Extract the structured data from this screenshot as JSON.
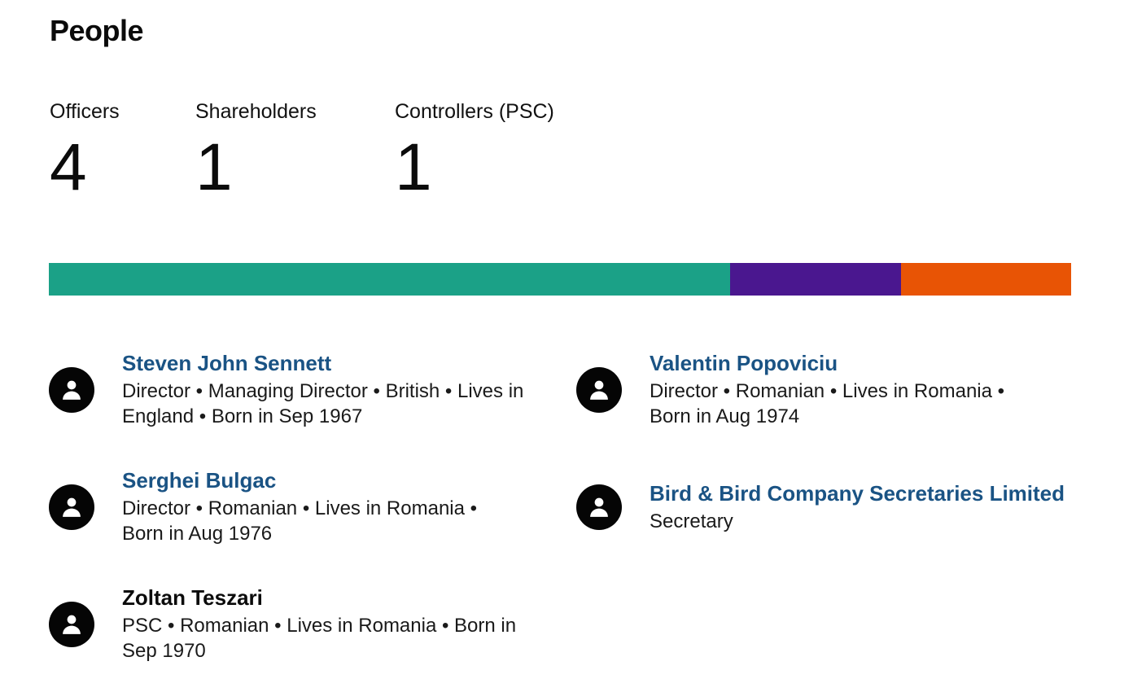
{
  "section": {
    "title": "People"
  },
  "stats": [
    {
      "label": "Officers",
      "value": "4"
    },
    {
      "label": "Shareholders",
      "value": "1"
    },
    {
      "label": "Controllers (PSC)",
      "value": "1"
    }
  ],
  "distribution_bar": {
    "segments": [
      {
        "category": "Officers",
        "count": 4,
        "color": "#1ba187"
      },
      {
        "category": "Shareholders",
        "count": 1,
        "color": "#4a178f"
      },
      {
        "category": "Controllers (PSC)",
        "count": 1,
        "color": "#e85405"
      }
    ]
  },
  "people": [
    {
      "name": "Steven John Sennett",
      "details": "Director • Managing Director • British • Lives in England • Born in Sep 1967",
      "is_link": true,
      "icon": "person-icon"
    },
    {
      "name": "Valentin Popoviciu",
      "details": "Director • Romanian • Lives in Romania • Born in Aug 1974",
      "is_link": true,
      "icon": "person-icon"
    },
    {
      "name": "Serghei Bulgac",
      "details": "Director • Romanian • Lives in Romania • Born in Aug 1976",
      "is_link": true,
      "icon": "person-icon"
    },
    {
      "name": "Bird & Bird Company Secretaries Limited",
      "details": "Secretary",
      "is_link": true,
      "icon": "person-icon"
    },
    {
      "name": "Zoltan Teszari",
      "details": "PSC • Romanian • Lives in Romania • Born in Sep 1970",
      "is_link": false,
      "icon": "person-icon"
    }
  ]
}
